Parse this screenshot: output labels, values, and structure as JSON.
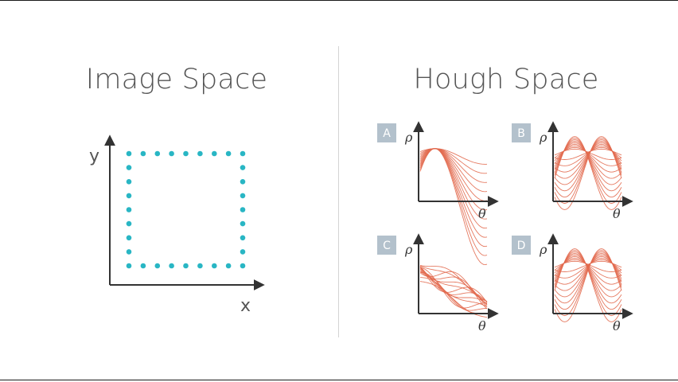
{
  "image_space": {
    "title": "Image Space",
    "x_label": "x",
    "y_label": "y",
    "dot_color": "#29b6c4",
    "points_per_side": 9
  },
  "hough_space": {
    "title": "Hough Space",
    "theta_label": "θ",
    "rho_label": "ρ",
    "curve_color": "#e26a4f",
    "badge_color": "#b3c1cc",
    "options": [
      {
        "letter": "A",
        "pattern": "single-crossing"
      },
      {
        "letter": "B",
        "pattern": "two-crossing-bands"
      },
      {
        "letter": "C",
        "pattern": "descending-band"
      },
      {
        "letter": "D",
        "pattern": "two-crossing-bands"
      }
    ]
  }
}
